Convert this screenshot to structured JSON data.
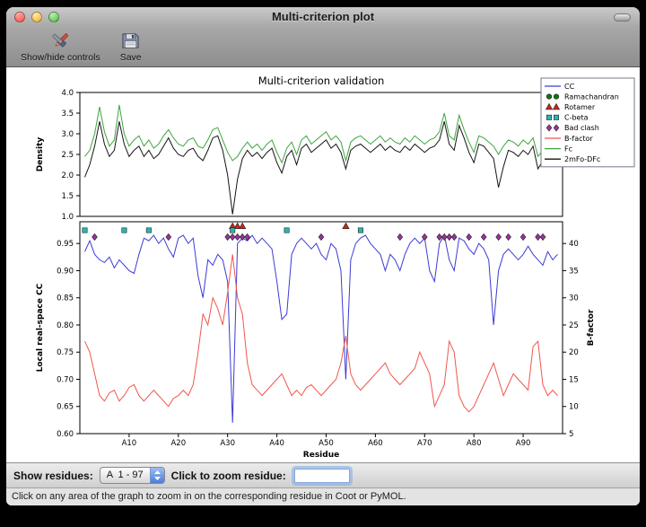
{
  "window": {
    "title": "Multi-criterion plot"
  },
  "toolbar": {
    "buttons": [
      {
        "label": "Show/hide controls",
        "icon": "controls-icon"
      },
      {
        "label": "Save",
        "icon": "save-icon"
      }
    ]
  },
  "legend": {
    "entries": [
      {
        "label": "CC",
        "type": "line",
        "color": "#3b3bd6"
      },
      {
        "label": "Ramachandran",
        "type": "circle",
        "color": "#117711"
      },
      {
        "label": "Rotamer",
        "type": "triangle",
        "color": "#cc2418"
      },
      {
        "label": "C-beta",
        "type": "square",
        "color": "#2cb6ae"
      },
      {
        "label": "Bad clash",
        "type": "diamond",
        "color": "#99349f"
      },
      {
        "label": "B-factor",
        "type": "line",
        "color": "#f0564e"
      },
      {
        "label": "Fc",
        "type": "line",
        "color": "#3fa43f"
      },
      {
        "label": "2mFo-DFc",
        "type": "line",
        "color": "#141414"
      }
    ]
  },
  "chart_data": [
    {
      "type": "line",
      "title": "Multi-criterion validation",
      "ylabel": "Density",
      "ylim": [
        1.0,
        4.0
      ],
      "yticks": [
        1.0,
        1.5,
        2.0,
        2.5,
        3.0,
        3.5,
        4.0
      ],
      "x_range": [
        1,
        97
      ],
      "grid": false,
      "series": [
        {
          "name": "Fc",
          "color": "#3fa43f",
          "values": [
            2.45,
            2.6,
            3.0,
            3.65,
            3.05,
            2.7,
            2.85,
            3.7,
            3.0,
            2.7,
            2.85,
            2.95,
            2.7,
            2.85,
            2.65,
            2.75,
            2.95,
            3.1,
            2.9,
            2.75,
            2.7,
            2.85,
            2.9,
            2.7,
            2.65,
            2.85,
            3.1,
            3.15,
            2.85,
            2.55,
            2.35,
            2.45,
            2.65,
            2.8,
            2.65,
            2.75,
            2.6,
            2.75,
            2.85,
            2.55,
            2.3,
            2.65,
            2.8,
            2.5,
            2.85,
            2.95,
            2.75,
            2.85,
            2.95,
            3.05,
            2.85,
            2.95,
            2.8,
            2.35,
            2.8,
            2.9,
            2.95,
            2.85,
            2.75,
            2.85,
            2.95,
            2.8,
            2.9,
            2.8,
            2.75,
            2.9,
            2.8,
            2.95,
            2.85,
            2.75,
            2.85,
            2.9,
            3.05,
            3.5,
            2.95,
            2.85,
            3.45,
            3.1,
            2.8,
            2.55,
            2.95,
            2.9,
            2.8,
            2.7,
            2.5,
            2.7,
            2.85,
            2.8,
            2.7,
            2.85,
            2.75,
            2.9,
            2.45,
            2.6,
            3.3,
            3.15,
            3.25
          ]
        },
        {
          "name": "2mFo-DFc",
          "color": "#141414",
          "values": [
            1.95,
            2.25,
            2.7,
            3.3,
            2.75,
            2.45,
            2.6,
            3.3,
            2.75,
            2.45,
            2.6,
            2.7,
            2.45,
            2.6,
            2.4,
            2.5,
            2.7,
            2.9,
            2.65,
            2.5,
            2.45,
            2.6,
            2.65,
            2.45,
            2.35,
            2.6,
            2.9,
            2.95,
            2.6,
            2.0,
            1.05,
            1.9,
            2.4,
            2.6,
            2.45,
            2.55,
            2.4,
            2.55,
            2.65,
            2.3,
            2.05,
            2.45,
            2.6,
            2.25,
            2.65,
            2.75,
            2.55,
            2.65,
            2.75,
            2.85,
            2.65,
            2.75,
            2.55,
            2.15,
            2.6,
            2.7,
            2.75,
            2.65,
            2.55,
            2.65,
            2.75,
            2.6,
            2.7,
            2.6,
            2.55,
            2.7,
            2.6,
            2.75,
            2.65,
            2.55,
            2.65,
            2.7,
            2.85,
            3.3,
            2.75,
            2.6,
            3.2,
            2.9,
            2.55,
            2.3,
            2.75,
            2.7,
            2.55,
            2.4,
            1.7,
            2.2,
            2.6,
            2.55,
            2.45,
            2.6,
            2.5,
            2.7,
            2.15,
            2.35,
            3.1,
            2.95,
            3.0
          ]
        }
      ]
    },
    {
      "type": "line",
      "xlabel": "Residue",
      "ylabel_left": "Local real-space CC",
      "ylabel_right": "B-factor",
      "ylim_left": [
        0.6,
        0.99
      ],
      "yticks_left": [
        0.6,
        0.65,
        0.7,
        0.75,
        0.8,
        0.85,
        0.9,
        0.95
      ],
      "ylim_right": [
        5,
        44
      ],
      "yticks_right": [
        5,
        10,
        15,
        20,
        25,
        30,
        35,
        40
      ],
      "xticks": [
        {
          "value": 10,
          "label": "A10"
        },
        {
          "value": 20,
          "label": "A20"
        },
        {
          "value": 30,
          "label": "A30"
        },
        {
          "value": 40,
          "label": "A40"
        },
        {
          "value": 50,
          "label": "A50"
        },
        {
          "value": 60,
          "label": "A60"
        },
        {
          "value": 70,
          "label": "A70"
        },
        {
          "value": 80,
          "label": "A80"
        },
        {
          "value": 90,
          "label": "A90"
        }
      ],
      "series": [
        {
          "name": "CC",
          "axis": "left",
          "color": "#3b3bd6",
          "values": [
            0.935,
            0.955,
            0.93,
            0.92,
            0.915,
            0.925,
            0.905,
            0.92,
            0.91,
            0.9,
            0.895,
            0.93,
            0.96,
            0.955,
            0.965,
            0.95,
            0.96,
            0.94,
            0.925,
            0.96,
            0.965,
            0.95,
            0.96,
            0.89,
            0.85,
            0.92,
            0.91,
            0.93,
            0.92,
            0.88,
            0.62,
            0.95,
            0.96,
            0.955,
            0.965,
            0.95,
            0.96,
            0.95,
            0.94,
            0.88,
            0.81,
            0.82,
            0.93,
            0.95,
            0.96,
            0.95,
            0.94,
            0.95,
            0.93,
            0.92,
            0.95,
            0.94,
            0.9,
            0.7,
            0.92,
            0.95,
            0.96,
            0.965,
            0.95,
            0.94,
            0.93,
            0.9,
            0.93,
            0.92,
            0.9,
            0.93,
            0.95,
            0.96,
            0.95,
            0.96,
            0.9,
            0.88,
            0.95,
            0.965,
            0.92,
            0.9,
            0.96,
            0.955,
            0.94,
            0.93,
            0.95,
            0.94,
            0.92,
            0.8,
            0.9,
            0.93,
            0.94,
            0.93,
            0.92,
            0.93,
            0.945,
            0.93,
            0.92,
            0.91,
            0.935,
            0.92,
            0.93
          ]
        },
        {
          "name": "B-factor",
          "axis": "right",
          "color": "#f0564e",
          "values": [
            22,
            20,
            16,
            12,
            11,
            12.5,
            13,
            11,
            12,
            13.5,
            14,
            12,
            11,
            12,
            13,
            12,
            11,
            10,
            11.5,
            12,
            13,
            12,
            14,
            20,
            27,
            25,
            30,
            28,
            25,
            31,
            38,
            30,
            27,
            18,
            14,
            13,
            12,
            13,
            14,
            15,
            16,
            14,
            12,
            13,
            12,
            13.5,
            14,
            13,
            12,
            13,
            14,
            15,
            18,
            23,
            16,
            14,
            13,
            14,
            15,
            16,
            17,
            18,
            16,
            15,
            14,
            15,
            16,
            17,
            20,
            18,
            16,
            10,
            12,
            14,
            22,
            20,
            12,
            10,
            9,
            10,
            12,
            14,
            16,
            18,
            15,
            12,
            14,
            16,
            15,
            14,
            13,
            21,
            22,
            14,
            12,
            13,
            12
          ]
        }
      ],
      "markers": [
        {
          "name": "Ramachandran",
          "shape": "circle",
          "color": "#117711",
          "residues": []
        },
        {
          "name": "Rotamer",
          "shape": "triangle",
          "color": "#cc2418",
          "residues": [
            31,
            32,
            33,
            54
          ]
        },
        {
          "name": "C-beta",
          "shape": "square",
          "color": "#2cb6ae",
          "residues": [
            1,
            9,
            14,
            31,
            42,
            57
          ]
        },
        {
          "name": "Bad clash",
          "shape": "diamond",
          "color": "#99349f",
          "residues": [
            3,
            18,
            30,
            31,
            32,
            33,
            34,
            49,
            65,
            70,
            73,
            74,
            75,
            76,
            79,
            82,
            85,
            87,
            90,
            93,
            94
          ]
        }
      ]
    }
  ],
  "controls": {
    "show_residues_label": "Show residues:",
    "residue_range_value": "A  1 - 97",
    "zoom_label": "Click to zoom residue:",
    "zoom_value": ""
  },
  "status_text": "Click on any area of the graph to zoom in on the corresponding residue in Coot or PyMOL."
}
